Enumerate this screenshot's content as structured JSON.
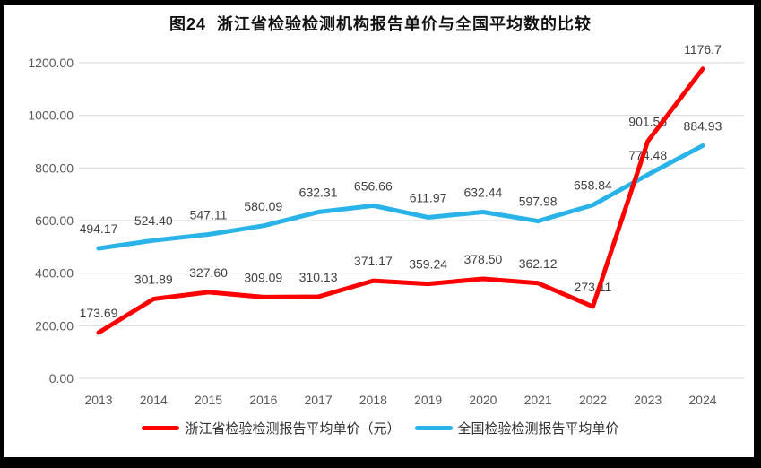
{
  "title": "图24  浙江省检验检测机构报告单价与全国平均数的比较",
  "colors": {
    "frame": "#000000",
    "background": "#ffffff",
    "grid": "#d9d9d9",
    "axis_text": "#595959",
    "label_text": "#404040",
    "zhejiang_red": "#fe0000",
    "national_blue": "#29b3e8"
  },
  "chart_data": {
    "type": "line",
    "title": "图24  浙江省检验检测机构报告单价与全国平均数的比较",
    "categories": [
      "2013",
      "2014",
      "2015",
      "2016",
      "2017",
      "2018",
      "2019",
      "2020",
      "2021",
      "2022",
      "2023",
      "2024"
    ],
    "series": [
      {
        "name": "浙江省检验检测报告平均单价（元）",
        "color": "#fe0000",
        "values": [
          173.69,
          301.89,
          327.6,
          309.09,
          310.13,
          371.17,
          359.24,
          378.5,
          362.12,
          273.11,
          901.56,
          1176.7
        ],
        "labels": [
          "173.69",
          "301.89",
          "327.60",
          "309.09",
          "310.13",
          "371.17",
          "359.24",
          "378.50",
          "362.12",
          "273.11",
          "901.56",
          "1176.7"
        ]
      },
      {
        "name": "全国检验检测报告平均单价",
        "color": "#29b3e8",
        "values": [
          494.17,
          524.4,
          547.11,
          580.09,
          632.31,
          656.66,
          611.97,
          632.44,
          597.98,
          658.84,
          774.48,
          884.93
        ],
        "labels": [
          "494.17",
          "524.40",
          "547.11",
          "580.09",
          "632.31",
          "656.66",
          "611.97",
          "632.44",
          "597.98",
          "658.84",
          "774.48",
          "884.93"
        ]
      }
    ],
    "ylim": [
      0,
      1200
    ],
    "ytick_step": 200,
    "yticks": [
      "0.00",
      "200.00",
      "400.00",
      "600.00",
      "800.00",
      "1000.00",
      "1200.00"
    ],
    "grid": true,
    "legend_position": "bottom",
    "data_labels": "above"
  }
}
